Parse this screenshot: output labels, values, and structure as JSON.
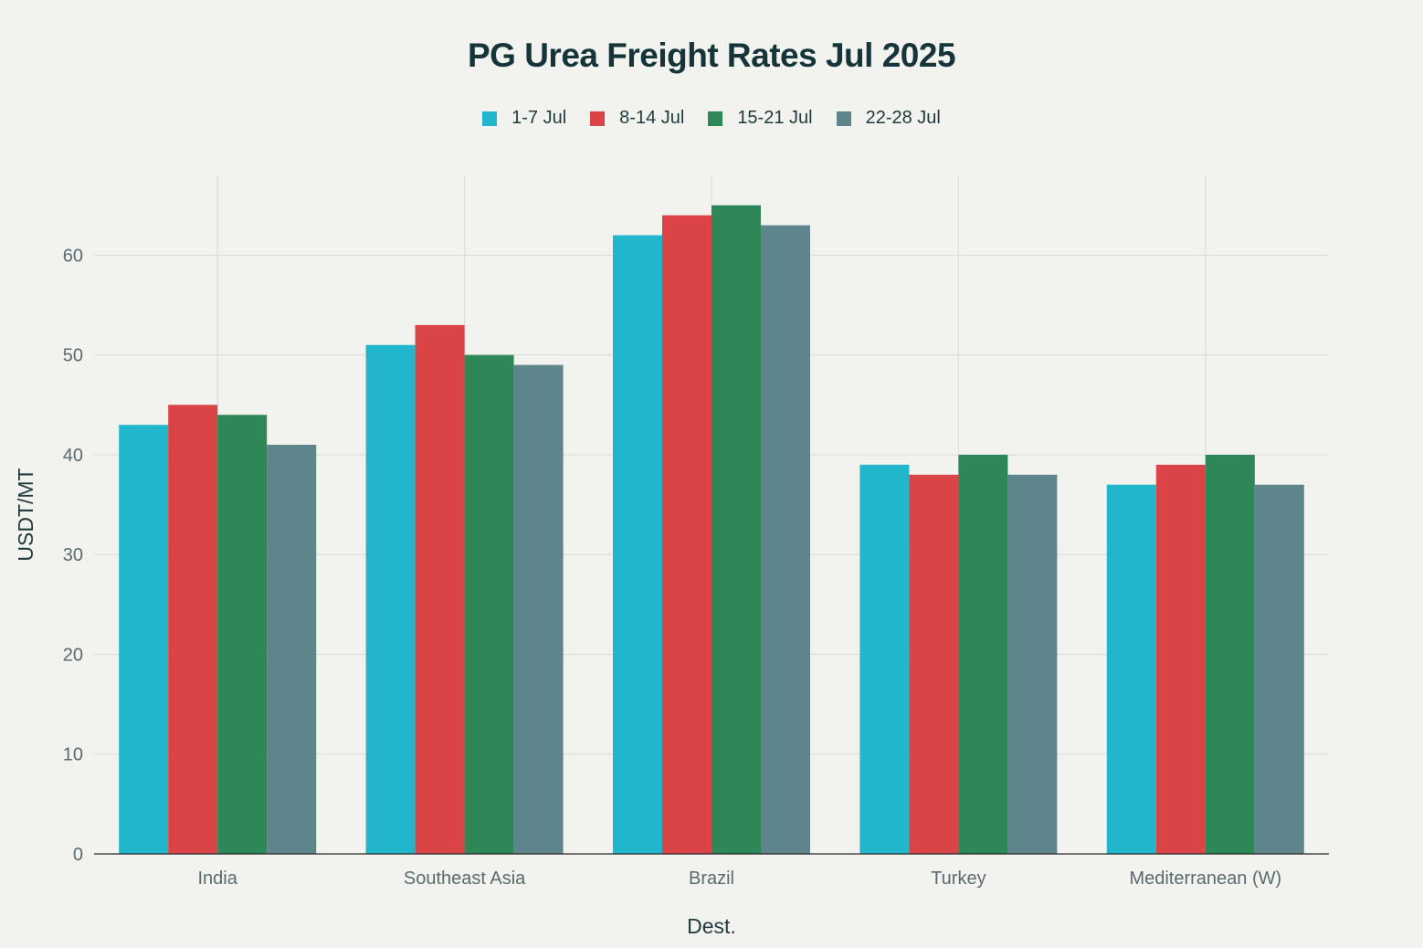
{
  "chart_data": {
    "type": "bar",
    "title": "PG Urea Freight Rates Jul 2025",
    "xlabel": "Dest.",
    "ylabel": "USDT/MT",
    "ylim": [
      0,
      68
    ],
    "yticks": [
      0,
      10,
      20,
      30,
      40,
      50,
      60
    ],
    "grid": true,
    "legend_position": "top-center",
    "categories": [
      "India",
      "Southeast Asia",
      "Brazil",
      "Turkey",
      "Mediterranean (W)"
    ],
    "series": [
      {
        "name": "1-7 Jul",
        "color": "#22b6cc",
        "values": [
          43,
          51,
          62,
          39,
          37
        ]
      },
      {
        "name": "8-14 Jul",
        "color": "#db4446",
        "values": [
          45,
          53,
          64,
          38,
          39
        ]
      },
      {
        "name": "15-21 Jul",
        "color": "#2e8757",
        "values": [
          44,
          50,
          65,
          40,
          40
        ]
      },
      {
        "name": "22-28 Jul",
        "color": "#5e858b",
        "values": [
          41,
          49,
          63,
          38,
          37
        ]
      }
    ]
  }
}
